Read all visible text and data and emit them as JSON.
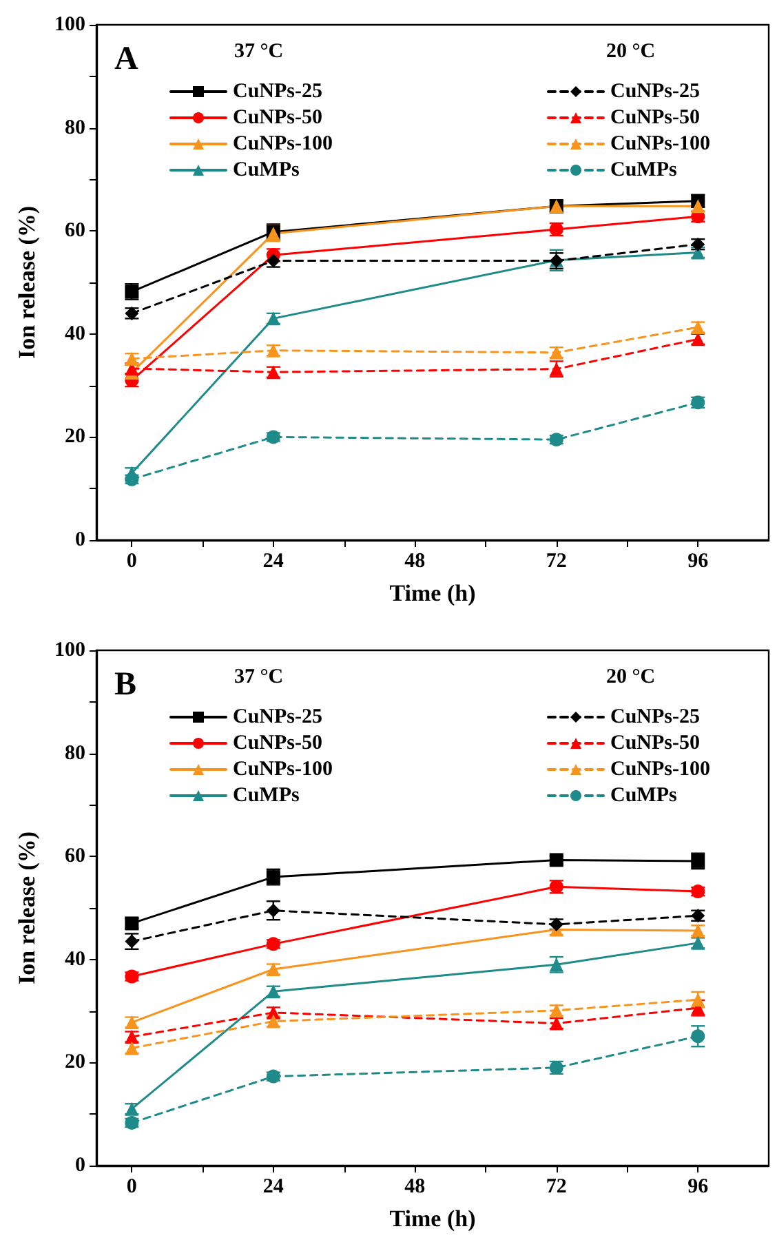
{
  "chart_data": [
    {
      "type": "line",
      "title": "A",
      "xlabel": "Time (h)",
      "ylabel": "Ion release (%)",
      "annotations": [
        "37 °C",
        "20 °C"
      ],
      "x": [
        0,
        24,
        72,
        96
      ],
      "xlim": [
        -6,
        108
      ],
      "xticks": [
        0,
        24,
        48,
        72,
        96
      ],
      "ylim": [
        0,
        100
      ],
      "yticks": [
        0,
        20,
        40,
        60,
        80,
        100
      ],
      "grid": false,
      "legend": "top",
      "series": [
        {
          "name": "CuNPs-25",
          "color": "#000000",
          "marker": "square",
          "line_style": "solid",
          "values": [
            48.2,
            59.8,
            64.8,
            65.8
          ],
          "errors": [
            1.5,
            1.5,
            1.2,
            1.2
          ]
        },
        {
          "name": "CuNPs-50",
          "color": "#ff0000",
          "marker": "circle",
          "line_style": "solid",
          "values": [
            31,
            55.3,
            60.3,
            62.8
          ],
          "errors": [
            1.2,
            1.2,
            1.2,
            1
          ]
        },
        {
          "name": "CuNPs-100",
          "color": "#f7941d",
          "marker": "triangle",
          "line_style": "solid",
          "values": [
            32.5,
            59.5,
            64.8,
            64.8
          ],
          "errors": [
            1.5,
            1.5,
            1,
            1
          ]
        },
        {
          "name": "CuMPs",
          "color": "#1f8a8a",
          "marker": "triangle",
          "line_style": "solid",
          "values": [
            13,
            43,
            54.3,
            55.8
          ],
          "errors": [
            1,
            1,
            2,
            1
          ]
        },
        {
          "name": "CuNPs-25",
          "color": "#000000",
          "marker": "diamond",
          "line_style": "dashed",
          "values": [
            44,
            54.2,
            54.2,
            57.4
          ],
          "errors": [
            1,
            1.2,
            1.5,
            1
          ]
        },
        {
          "name": "CuNPs-50",
          "color": "#ff0000",
          "marker": "triangle",
          "line_style": "dashed",
          "values": [
            33.3,
            32.6,
            33.2,
            39
          ],
          "errors": [
            1,
            1,
            1.5,
            1
          ]
        },
        {
          "name": "CuNPs-100",
          "color": "#f7941d",
          "marker": "triangle",
          "line_style": "dashed",
          "values": [
            35.2,
            36.8,
            36.4,
            41.3
          ],
          "errors": [
            1,
            1,
            1,
            1
          ]
        },
        {
          "name": "CuMPs",
          "color": "#1f8a8a",
          "marker": "circle",
          "line_style": "dashed",
          "values": [
            11.8,
            20,
            19.5,
            26.7
          ],
          "errors": [
            0.8,
            0.8,
            0.8,
            1
          ]
        }
      ]
    },
    {
      "type": "line",
      "title": "B",
      "xlabel": "Time (h)",
      "ylabel": "Ion release (%)",
      "annotations": [
        "37 °C",
        "20 °C"
      ],
      "x": [
        0,
        24,
        72,
        96
      ],
      "xlim": [
        -6,
        108
      ],
      "xticks": [
        0,
        24,
        48,
        72,
        96
      ],
      "ylim": [
        0,
        100
      ],
      "yticks": [
        0,
        20,
        40,
        60,
        80,
        100
      ],
      "grid": false,
      "legend": "top",
      "series": [
        {
          "name": "CuNPs-25",
          "color": "#000000",
          "marker": "square",
          "line_style": "solid",
          "values": [
            47,
            56,
            59.3,
            59.1
          ],
          "errors": [
            1,
            1.5,
            0.8,
            1.5
          ]
        },
        {
          "name": "CuNPs-50",
          "color": "#ff0000",
          "marker": "circle",
          "line_style": "solid",
          "values": [
            36.7,
            43,
            54.1,
            53.2
          ],
          "errors": [
            0.8,
            0.8,
            1.2,
            0.8
          ]
        },
        {
          "name": "CuNPs-100",
          "color": "#f7941d",
          "marker": "triangle",
          "line_style": "solid",
          "values": [
            27.8,
            38.1,
            45.8,
            45.6
          ],
          "errors": [
            1,
            1,
            1,
            1
          ]
        },
        {
          "name": "CuMPs",
          "color": "#1f8a8a",
          "marker": "triangle",
          "line_style": "solid",
          "values": [
            11,
            33.8,
            39,
            43.2
          ],
          "errors": [
            1,
            1,
            1.5,
            1
          ]
        },
        {
          "name": "CuNPs-25",
          "color": "#000000",
          "marker": "diamond",
          "line_style": "dashed",
          "values": [
            43.5,
            49.5,
            46.8,
            48.5
          ],
          "errors": [
            1.5,
            1.8,
            1,
            1
          ]
        },
        {
          "name": "CuNPs-50",
          "color": "#ff0000",
          "marker": "triangle",
          "line_style": "dashed",
          "values": [
            25,
            29.7,
            27.6,
            30.6
          ],
          "errors": [
            1,
            1,
            1,
            1.5
          ]
        },
        {
          "name": "CuNPs-100",
          "color": "#f7941d",
          "marker": "triangle",
          "line_style": "dashed",
          "values": [
            22.8,
            28,
            30.1,
            32.2
          ],
          "errors": [
            1,
            1,
            1,
            1.5
          ]
        },
        {
          "name": "CuMPs",
          "color": "#1f8a8a",
          "marker": "circle",
          "line_style": "dashed",
          "values": [
            8.3,
            17.3,
            19,
            25.1
          ],
          "errors": [
            0.8,
            0.8,
            1.2,
            2
          ]
        }
      ]
    }
  ]
}
